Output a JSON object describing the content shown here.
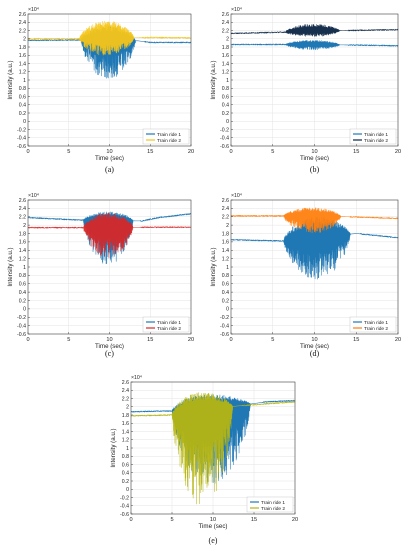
{
  "chart_data": [
    {
      "type": "line",
      "caption": "(a)",
      "xlabel": "Time (sec)",
      "ylabel": "Intensity (a.u.)",
      "exponent_label": "×10⁴",
      "xlim": [
        0,
        20
      ],
      "ylim": [
        -0.6,
        2.6
      ],
      "xticks": [
        "0",
        "5",
        "10",
        "15",
        "20"
      ],
      "yticks": [
        "2.6",
        "2.4",
        "2.2",
        "2",
        "1.8",
        "1.6",
        "1.4",
        "1.2",
        "1",
        "0.8",
        "0.6",
        "0.4",
        "0.2",
        "0",
        "-0.2",
        "-0.4",
        "-0.6"
      ],
      "grid": true,
      "legend_position": "bottom-right",
      "series": [
        {
          "name": "Train ride 1",
          "color": "#1f77b4",
          "baseline": [
            [
              0,
              1.96
            ],
            [
              6.5,
              1.97
            ],
            [
              13.5,
              1.95
            ],
            [
              15,
              1.91
            ],
            [
              20,
              1.91
            ]
          ],
          "burst": [
            6.5,
            14.2
          ],
          "burst_high": 2.3,
          "burst_low": 1.0
        },
        {
          "name": "Train ride 2",
          "color": "#f5c518",
          "baseline": [
            [
              0,
              2.0
            ],
            [
              6.5,
              2.0
            ],
            [
              15,
              2.03
            ],
            [
              20,
              2.02
            ]
          ],
          "burst": [
            6.3,
            14.0
          ],
          "burst_high": 2.44,
          "burst_low": 1.58
        }
      ]
    },
    {
      "type": "line",
      "caption": "(b)",
      "xlabel": "Time (sec)",
      "ylabel": "Intensity (a.u.)",
      "exponent_label": "×10⁴",
      "xlim": [
        0,
        20
      ],
      "ylim": [
        -0.6,
        2.6
      ],
      "xticks": [
        "0",
        "5",
        "10",
        "15",
        "20"
      ],
      "yticks": [
        "2.6",
        "2.4",
        "2.2",
        "2",
        "1.8",
        "1.6",
        "1.4",
        "1.2",
        "1",
        "0.8",
        "0.6",
        "0.4",
        "0.2",
        "0",
        "-0.2",
        "-0.4",
        "-0.6"
      ],
      "grid": true,
      "legend_position": "bottom-right",
      "series": [
        {
          "name": "Train ride 1",
          "color": "#1f77b4",
          "baseline": [
            [
              0,
              1.86
            ],
            [
              6.5,
              1.86
            ],
            [
              14,
              1.85
            ],
            [
              20,
              1.83
            ]
          ],
          "burst": [
            6.5,
            14.0
          ],
          "burst_high": 1.97,
          "burst_low": 1.73
        },
        {
          "name": "Train ride 2",
          "color": "#0b2545",
          "baseline": [
            [
              0,
              2.13
            ],
            [
              6.5,
              2.16
            ],
            [
              14,
              2.2
            ],
            [
              20,
              2.22
            ]
          ],
          "burst": [
            6.5,
            14.0
          ],
          "burst_high": 2.36,
          "burst_low": 2.05
        }
      ]
    },
    {
      "type": "line",
      "caption": "(c)",
      "xlabel": "Time (sec)",
      "ylabel": "Intensity (a.u.)",
      "exponent_label": "×10⁴",
      "xlim": [
        0,
        20
      ],
      "ylim": [
        -0.6,
        2.6
      ],
      "xticks": [
        "0",
        "5",
        "10",
        "15",
        "20"
      ],
      "yticks": [
        "2.6",
        "2.4",
        "2.2",
        "2",
        "1.8",
        "1.6",
        "1.4",
        "1.2",
        "1",
        "0.8",
        "0.6",
        "0.4",
        "0.2",
        "0",
        "-0.2",
        "-0.4",
        "-0.6"
      ],
      "grid": true,
      "legend_position": "bottom-right",
      "series": [
        {
          "name": "Train ride 1",
          "color": "#1f77b4",
          "baseline": [
            [
              0,
              2.18
            ],
            [
              6.5,
              2.12
            ],
            [
              14,
              2.1
            ],
            [
              16,
              2.18
            ],
            [
              20,
              2.27
            ]
          ],
          "burst": [
            6.8,
            13.8
          ],
          "burst_high": 2.32,
          "burst_low": 1.05
        },
        {
          "name": "Train ride 2",
          "color": "#d62728",
          "baseline": [
            [
              0,
              1.94
            ],
            [
              6.5,
              1.94
            ],
            [
              14,
              1.95
            ],
            [
              20,
              1.95
            ]
          ],
          "burst": [
            6.8,
            13.8
          ],
          "burst_high": 2.3,
          "burst_low": 1.2
        }
      ]
    },
    {
      "type": "line",
      "caption": "(d)",
      "xlabel": "Time (sec)",
      "ylabel": "Intensity (a.u.)",
      "exponent_label": "×10⁴",
      "xlim": [
        0,
        20
      ],
      "ylim": [
        -0.6,
        2.6
      ],
      "xticks": [
        "0",
        "5",
        "10",
        "15",
        "20"
      ],
      "yticks": [
        "2.6",
        "2.4",
        "2.2",
        "2",
        "1.8",
        "1.6",
        "1.4",
        "1.2",
        "1",
        "0.8",
        "0.6",
        "0.4",
        "0.2",
        "0",
        "-0.2",
        "-0.4",
        "-0.6"
      ],
      "grid": true,
      "legend_position": "bottom-right",
      "series": [
        {
          "name": "Train ride 1",
          "color": "#1f77b4",
          "baseline": [
            [
              0,
              1.65
            ],
            [
              6.5,
              1.62
            ],
            [
              15,
              1.8
            ],
            [
              20,
              1.7
            ]
          ],
          "burst": [
            6.3,
            15.5
          ],
          "burst_high": 2.2,
          "burst_low": 0.7
        },
        {
          "name": "Train ride 2",
          "color": "#ff7f0e",
          "baseline": [
            [
              0,
              2.22
            ],
            [
              6.5,
              2.22
            ],
            [
              14,
              2.2
            ],
            [
              20,
              2.16
            ]
          ],
          "burst": [
            6.3,
            14.2
          ],
          "burst_high": 2.42,
          "burst_low": 1.8
        }
      ]
    },
    {
      "type": "line",
      "caption": "(e)",
      "xlabel": "Time (sec)",
      "ylabel": "Intensity (a.u.)",
      "exponent_label": "×10⁴",
      "xlim": [
        0,
        20
      ],
      "ylim": [
        -0.6,
        2.6
      ],
      "xticks": [
        "0",
        "5",
        "10",
        "15",
        "20"
      ],
      "yticks": [
        "2.6",
        "2.4",
        "2.2",
        "2",
        "1.8",
        "1.6",
        "1.4",
        "1.2",
        "1",
        "0.8",
        "0.6",
        "0.4",
        "0.2",
        "0",
        "-0.2",
        "-0.4",
        "-0.6"
      ],
      "grid": true,
      "legend_position": "bottom-right",
      "series": [
        {
          "name": "Train ride 1",
          "color": "#1f77b4",
          "baseline": [
            [
              0,
              1.88
            ],
            [
              5,
              1.9
            ],
            [
              14,
              2.05
            ],
            [
              16.5,
              2.12
            ],
            [
              20,
              2.15
            ]
          ],
          "burst": [
            5.0,
            16.0
          ],
          "burst_high": 2.3,
          "burst_low": 0.1
        },
        {
          "name": "Train ride 2",
          "color": "#b5b512",
          "baseline": [
            [
              0,
              1.78
            ],
            [
              5,
              1.8
            ],
            [
              13,
              2.02
            ],
            [
              20,
              2.12
            ]
          ],
          "burst": [
            5.0,
            13.5
          ],
          "burst_high": 2.35,
          "burst_low": -0.45
        }
      ]
    }
  ]
}
